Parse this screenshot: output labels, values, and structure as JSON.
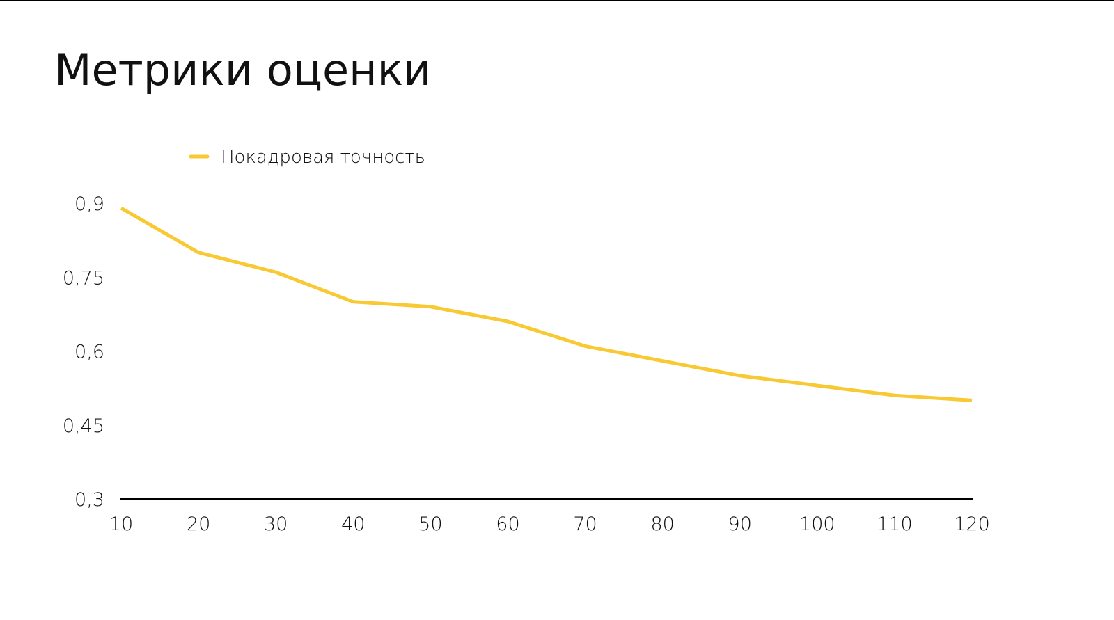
{
  "chart_data": {
    "type": "line",
    "title": "Метрики оценки",
    "x": [
      10,
      20,
      30,
      40,
      50,
      60,
      70,
      80,
      90,
      100,
      110,
      120
    ],
    "series": [
      {
        "name": "Покадровая точность",
        "color": "#f9c933",
        "values": [
          0.89,
          0.8,
          0.76,
          0.7,
          0.69,
          0.66,
          0.61,
          0.58,
          0.55,
          0.53,
          0.51,
          0.5
        ]
      }
    ],
    "xlim": [
      10,
      120
    ],
    "xticks": [
      10,
      20,
      30,
      40,
      50,
      60,
      70,
      80,
      90,
      100,
      110,
      120
    ],
    "ylim": [
      0.3,
      0.9
    ],
    "yticks": [
      {
        "value": 0.3,
        "label": "0,3"
      },
      {
        "value": 0.45,
        "label": "0,45"
      },
      {
        "value": 0.6,
        "label": "0,6"
      },
      {
        "value": 0.75,
        "label": "0,75"
      },
      {
        "value": 0.9,
        "label": "0,9"
      }
    ],
    "grid": false,
    "legend": "top-left"
  }
}
